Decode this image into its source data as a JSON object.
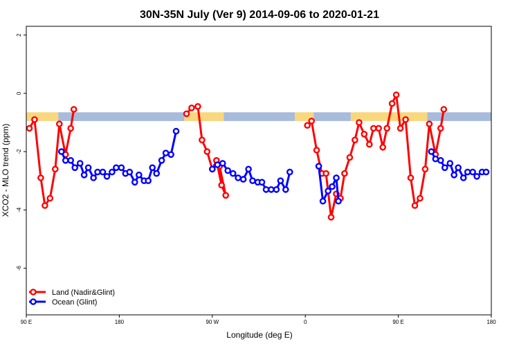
{
  "chart_data": {
    "type": "line",
    "title": "30N-35N July (Ver 9)   2014-09-06 to 2020-01-21",
    "xlabel": "Longitude (deg E)",
    "ylabel": "XCO2 - MLO trend (ppm)",
    "x_ticks": [
      {
        "value": 90,
        "label": "90 E"
      },
      {
        "value": 180,
        "label": "180"
      },
      {
        "value": 270,
        "label": "90 W"
      },
      {
        "value": 360,
        "label": "0"
      },
      {
        "value": 450,
        "label": "90 E"
      },
      {
        "value": 540,
        "label": "180"
      }
    ],
    "y_ticks": [
      {
        "value": 2,
        "label": "2"
      },
      {
        "value": 0,
        "label": "0"
      },
      {
        "value": -2,
        "label": "-2"
      },
      {
        "value": -4,
        "label": "-4"
      },
      {
        "value": -6,
        "label": "-6"
      }
    ],
    "xlim": [
      90,
      540
    ],
    "ylim": [
      -7.6,
      2.3
    ],
    "grid": false,
    "legend_position": "bottom-left",
    "surface_band": {
      "ymin": -0.95,
      "ymax": -0.65,
      "segments": [
        {
          "type": "land",
          "x0": 90,
          "x1": 121
        },
        {
          "type": "ocean",
          "x0": 121,
          "x1": 243
        },
        {
          "type": "land",
          "x0": 243,
          "x1": 281
        },
        {
          "type": "ocean",
          "x0": 281,
          "x1": 350
        },
        {
          "type": "land",
          "x0": 350,
          "x1": 450
        },
        {
          "type": "ocean",
          "x0": 450,
          "x1": 445
        }
      ],
      "band_extent": [
        [
          350,
          368,
          "land"
        ],
        [
          368,
          404,
          "ocean"
        ],
        [
          404,
          478,
          "land"
        ],
        [
          478,
          540,
          "ocean"
        ]
      ],
      "land_color": "#F9D77E",
      "ocean_color": "#A7BBDA"
    },
    "series": [
      {
        "name": "Land (Nadir&Glint)",
        "color": "#FF0000",
        "points": [
          [
            [
              93,
              -1.2
            ],
            [
              98,
              -0.9
            ],
            [
              104,
              -2.9
            ],
            [
              108,
              -3.85
            ],
            [
              113,
              -3.6
            ],
            [
              118,
              -2.6
            ],
            [
              122,
              -1.05
            ],
            [
              128,
              -2.1
            ],
            [
              133,
              -1.2
            ],
            [
              136,
              -0.55
            ]
          ],
          [
            [
              245,
              -0.7
            ],
            [
              250,
              -0.5
            ],
            [
              256,
              -0.45
            ],
            [
              260,
              -1.6
            ],
            [
              265,
              -2.0
            ],
            [
              270,
              -2.6
            ],
            [
              274,
              -2.3
            ],
            [
              279,
              -3.15
            ],
            [
              283,
              -3.5
            ],
            [
              277,
              -2.5
            ]
          ],
          [
            [
              362,
              -1.1
            ],
            [
              366,
              -0.95
            ],
            [
              371,
              -1.95
            ],
            [
              376,
              -2.75
            ],
            [
              380,
              -2.75
            ],
            [
              385,
              -4.25
            ],
            [
              390,
              -3.45
            ],
            [
              394,
              -3.6
            ],
            [
              398,
              -2.75
            ],
            [
              403,
              -2.2
            ],
            [
              408,
              -1.6
            ],
            [
              412,
              -1.0
            ],
            [
              417,
              -1.4
            ],
            [
              422,
              -1.75
            ],
            [
              426,
              -1.2
            ],
            [
              431,
              -1.2
            ],
            [
              435,
              -1.85
            ],
            [
              439,
              -1.2
            ],
            [
              444,
              -0.35
            ],
            [
              448,
              -0.05
            ],
            [
              452,
              -1.2
            ],
            [
              457,
              -0.9
            ],
            [
              462,
              -2.9
            ],
            [
              466,
              -3.85
            ],
            [
              471,
              -3.6
            ],
            [
              476,
              -2.6
            ],
            [
              480,
              -1.05
            ],
            [
              486,
              -2.1
            ],
            [
              491,
              -1.2
            ],
            [
              494,
              -0.55
            ]
          ]
        ]
      },
      {
        "name": "Ocean (Glint)",
        "color": "#0000FF",
        "points": [
          [
            [
              124,
              -2.0
            ],
            [
              128,
              -2.3
            ],
            [
              133,
              -2.3
            ],
            [
              137,
              -2.55
            ],
            [
              142,
              -2.4
            ],
            [
              146,
              -2.8
            ],
            [
              150,
              -2.55
            ],
            [
              155,
              -2.9
            ],
            [
              159,
              -2.7
            ],
            [
              164,
              -2.7
            ],
            [
              168,
              -2.85
            ],
            [
              173,
              -2.7
            ],
            [
              177,
              -2.55
            ],
            [
              182,
              -2.55
            ],
            [
              186,
              -2.75
            ],
            [
              190,
              -2.7
            ],
            [
              195,
              -3.05
            ],
            [
              199,
              -2.8
            ],
            [
              204,
              -3.0
            ],
            [
              208,
              -3.0
            ],
            [
              212,
              -2.55
            ],
            [
              216,
              -2.75
            ],
            [
              221,
              -2.3
            ],
            [
              225,
              -2.05
            ],
            [
              230,
              -2.1
            ],
            [
              235,
              -1.3
            ]
          ],
          [
            [
              270,
              -2.6
            ],
            [
              275,
              -2.45
            ],
            [
              280,
              -2.4
            ],
            [
              285,
              -2.65
            ],
            [
              290,
              -2.75
            ],
            [
              295,
              -2.9
            ],
            [
              300,
              -2.95
            ],
            [
              305,
              -2.6
            ],
            [
              309,
              -3.0
            ],
            [
              314,
              -3.05
            ],
            [
              318,
              -3.05
            ],
            [
              322,
              -3.3
            ],
            [
              327,
              -3.3
            ],
            [
              332,
              -3.3
            ],
            [
              336,
              -3.0
            ],
            [
              341,
              -3.3
            ],
            [
              345,
              -2.7
            ]
          ],
          [
            [
              373,
              -2.5
            ],
            [
              377,
              -3.7
            ],
            [
              382,
              -3.35
            ],
            [
              386,
              -3.2
            ],
            [
              390,
              -2.9
            ],
            [
              392,
              -3.7
            ]
          ],
          [
            [
              482,
              -2.0
            ],
            [
              486,
              -2.25
            ],
            [
              491,
              -2.3
            ],
            [
              495,
              -2.55
            ],
            [
              500,
              -2.4
            ],
            [
              504,
              -2.8
            ],
            [
              508,
              -2.55
            ],
            [
              513,
              -2.9
            ],
            [
              517,
              -2.7
            ],
            [
              522,
              -2.7
            ],
            [
              526,
              -2.85
            ],
            [
              531,
              -2.7
            ],
            [
              535,
              -2.7
            ]
          ]
        ]
      }
    ]
  }
}
